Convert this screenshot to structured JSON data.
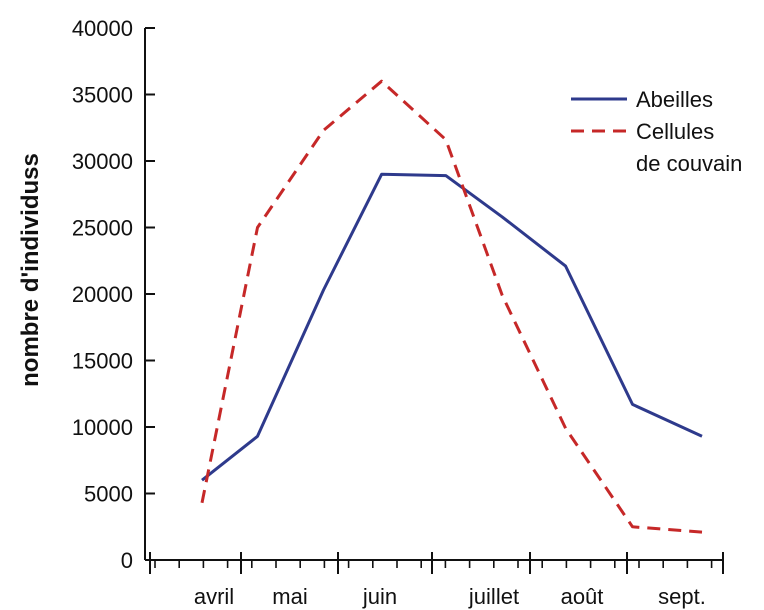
{
  "chart_data": {
    "type": "line",
    "title": "",
    "ylabel": "nombre d'individuss",
    "xlabel": "",
    "ylim": [
      0,
      40000
    ],
    "yticks": [
      0,
      5000,
      10000,
      15000,
      20000,
      25000,
      30000,
      35000,
      40000
    ],
    "x_categories": [
      "avril",
      "mai",
      "juin",
      "juillet",
      "août",
      "sept."
    ],
    "grid": false,
    "legend_position": "top-right",
    "series": [
      {
        "name": "Abeilles",
        "color": "#2e3a8c",
        "style": "solid",
        "x": [
          0.0,
          0.63,
          1.38,
          2.04,
          2.77,
          3.41,
          4.13,
          4.89,
          5.68
        ],
        "y": [
          6000,
          9300,
          20300,
          29000,
          28900,
          25800,
          22100,
          11700,
          9300
        ]
      },
      {
        "name": "Cellules de couvain",
        "legend_lines": [
          "Cellules",
          "de couvain"
        ],
        "color": "#c62828",
        "style": "dashed",
        "x": [
          0.0,
          0.63,
          1.38,
          2.04,
          2.77,
          3.41,
          4.13,
          4.89,
          5.68
        ],
        "y": [
          4300,
          25000,
          32300,
          36000,
          31600,
          19900,
          9900,
          2500,
          2100
        ]
      }
    ]
  }
}
